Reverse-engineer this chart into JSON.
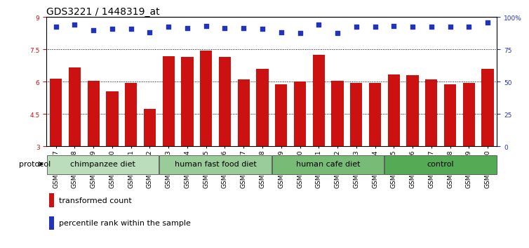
{
  "title": "GDS3221 / 1448319_at",
  "samples": [
    "GSM144707",
    "GSM144708",
    "GSM144709",
    "GSM144710",
    "GSM144711",
    "GSM144712",
    "GSM144713",
    "GSM144714",
    "GSM144715",
    "GSM144716",
    "GSM144717",
    "GSM144718",
    "GSM144719",
    "GSM144720",
    "GSM144721",
    "GSM144722",
    "GSM144723",
    "GSM144724",
    "GSM144725",
    "GSM144726",
    "GSM144727",
    "GSM144728",
    "GSM144729",
    "GSM144730"
  ],
  "bar_values": [
    6.15,
    6.65,
    6.05,
    5.55,
    5.95,
    4.75,
    7.2,
    7.15,
    7.45,
    7.15,
    6.1,
    6.6,
    5.9,
    6.0,
    7.25,
    6.05,
    5.95,
    5.95,
    6.35,
    6.3,
    6.1,
    5.9,
    5.95,
    6.6
  ],
  "percentile_values": [
    8.55,
    8.65,
    8.4,
    8.45,
    8.45,
    8.3,
    8.55,
    8.5,
    8.6,
    8.5,
    8.5,
    8.45,
    8.3,
    8.25,
    8.65,
    8.25,
    8.55,
    8.55,
    8.6,
    8.55,
    8.55,
    8.55,
    8.55,
    8.75
  ],
  "ylim": [
    3,
    9
  ],
  "yticks": [
    3,
    4.5,
    6,
    7.5,
    9
  ],
  "ytick_labels": [
    "3",
    "4.5",
    "6",
    "7.5",
    "9"
  ],
  "right_yticks": [
    0,
    25,
    50,
    75,
    100
  ],
  "right_ytick_labels": [
    "0",
    "25",
    "50",
    "75",
    "100%"
  ],
  "bar_color": "#CC1111",
  "dot_color": "#2233BB",
  "bg_color": "#FFFFFF",
  "plot_bg": "#FFFFFF",
  "groups": [
    {
      "label": "chimpanzee diet",
      "start": 0,
      "end": 6,
      "color": "#BBDDBB"
    },
    {
      "label": "human fast food diet",
      "start": 6,
      "end": 12,
      "color": "#99CC99"
    },
    {
      "label": "human cafe diet",
      "start": 12,
      "end": 18,
      "color": "#77BB77"
    },
    {
      "label": "control",
      "start": 18,
      "end": 24,
      "color": "#55AA55"
    }
  ],
  "protocol_label": "protocol",
  "legend_item1_label": "transformed count",
  "legend_item1_color": "#CC1111",
  "legend_item2_label": "percentile rank within the sample",
  "legend_item2_color": "#2233BB",
  "title_fontsize": 10,
  "tick_fontsize": 6.5,
  "group_fontsize": 8,
  "legend_fontsize": 8
}
